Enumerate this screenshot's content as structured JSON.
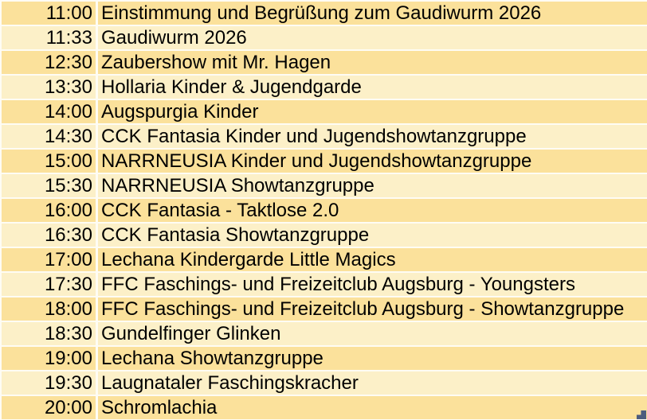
{
  "schedule": {
    "rows": [
      {
        "time": "11:00",
        "event": "Einstimmung und Begrüßung zum Gaudiwurm 2026"
      },
      {
        "time": "11:33",
        "event": "Gaudiwurm 2026"
      },
      {
        "time": "12:30",
        "event": "Zaubershow mit Mr. Hagen"
      },
      {
        "time": "13:30",
        "event": "Hollaria Kinder & Jugendgarde"
      },
      {
        "time": "14:00",
        "event": "Augspurgia Kinder"
      },
      {
        "time": "14:30",
        "event": "CCK Fantasia Kinder und Jugendshowtanzgruppe"
      },
      {
        "time": "15:00",
        "event": "NARRNEUSIA Kinder und Jugendshowtanzgruppe"
      },
      {
        "time": "15:30",
        "event": "NARRNEUSIA Showtanzgruppe"
      },
      {
        "time": "16:00",
        "event": "CCK Fantasia - Taktlose 2.0"
      },
      {
        "time": "16:30",
        "event": "CCK Fantasia Showtanzgruppe"
      },
      {
        "time": "17:00",
        "event": "Lechana Kindergarde Little Magics"
      },
      {
        "time": "17:30",
        "event": "FFC Faschings- und Freizeitclub Augsburg - Youngsters"
      },
      {
        "time": "18:00",
        "event": "FFC Faschings- und Freizeitclub Augsburg - Showtanzgruppe"
      },
      {
        "time": "18:30",
        "event": "Gundelfinger Glinken"
      },
      {
        "time": "19:00",
        "event": "Lechana Showtanzgruppe"
      },
      {
        "time": "19:30",
        "event": "Laugnataler Faschingskracher"
      },
      {
        "time": "20:00",
        "event": "Schromlachia"
      }
    ],
    "colors": {
      "row_odd": "#FBE19B",
      "row_even": "#FCF0C8",
      "gridline": "#FEFCF4",
      "text": "#000000",
      "selection_handle": "#4D5C7E"
    }
  }
}
